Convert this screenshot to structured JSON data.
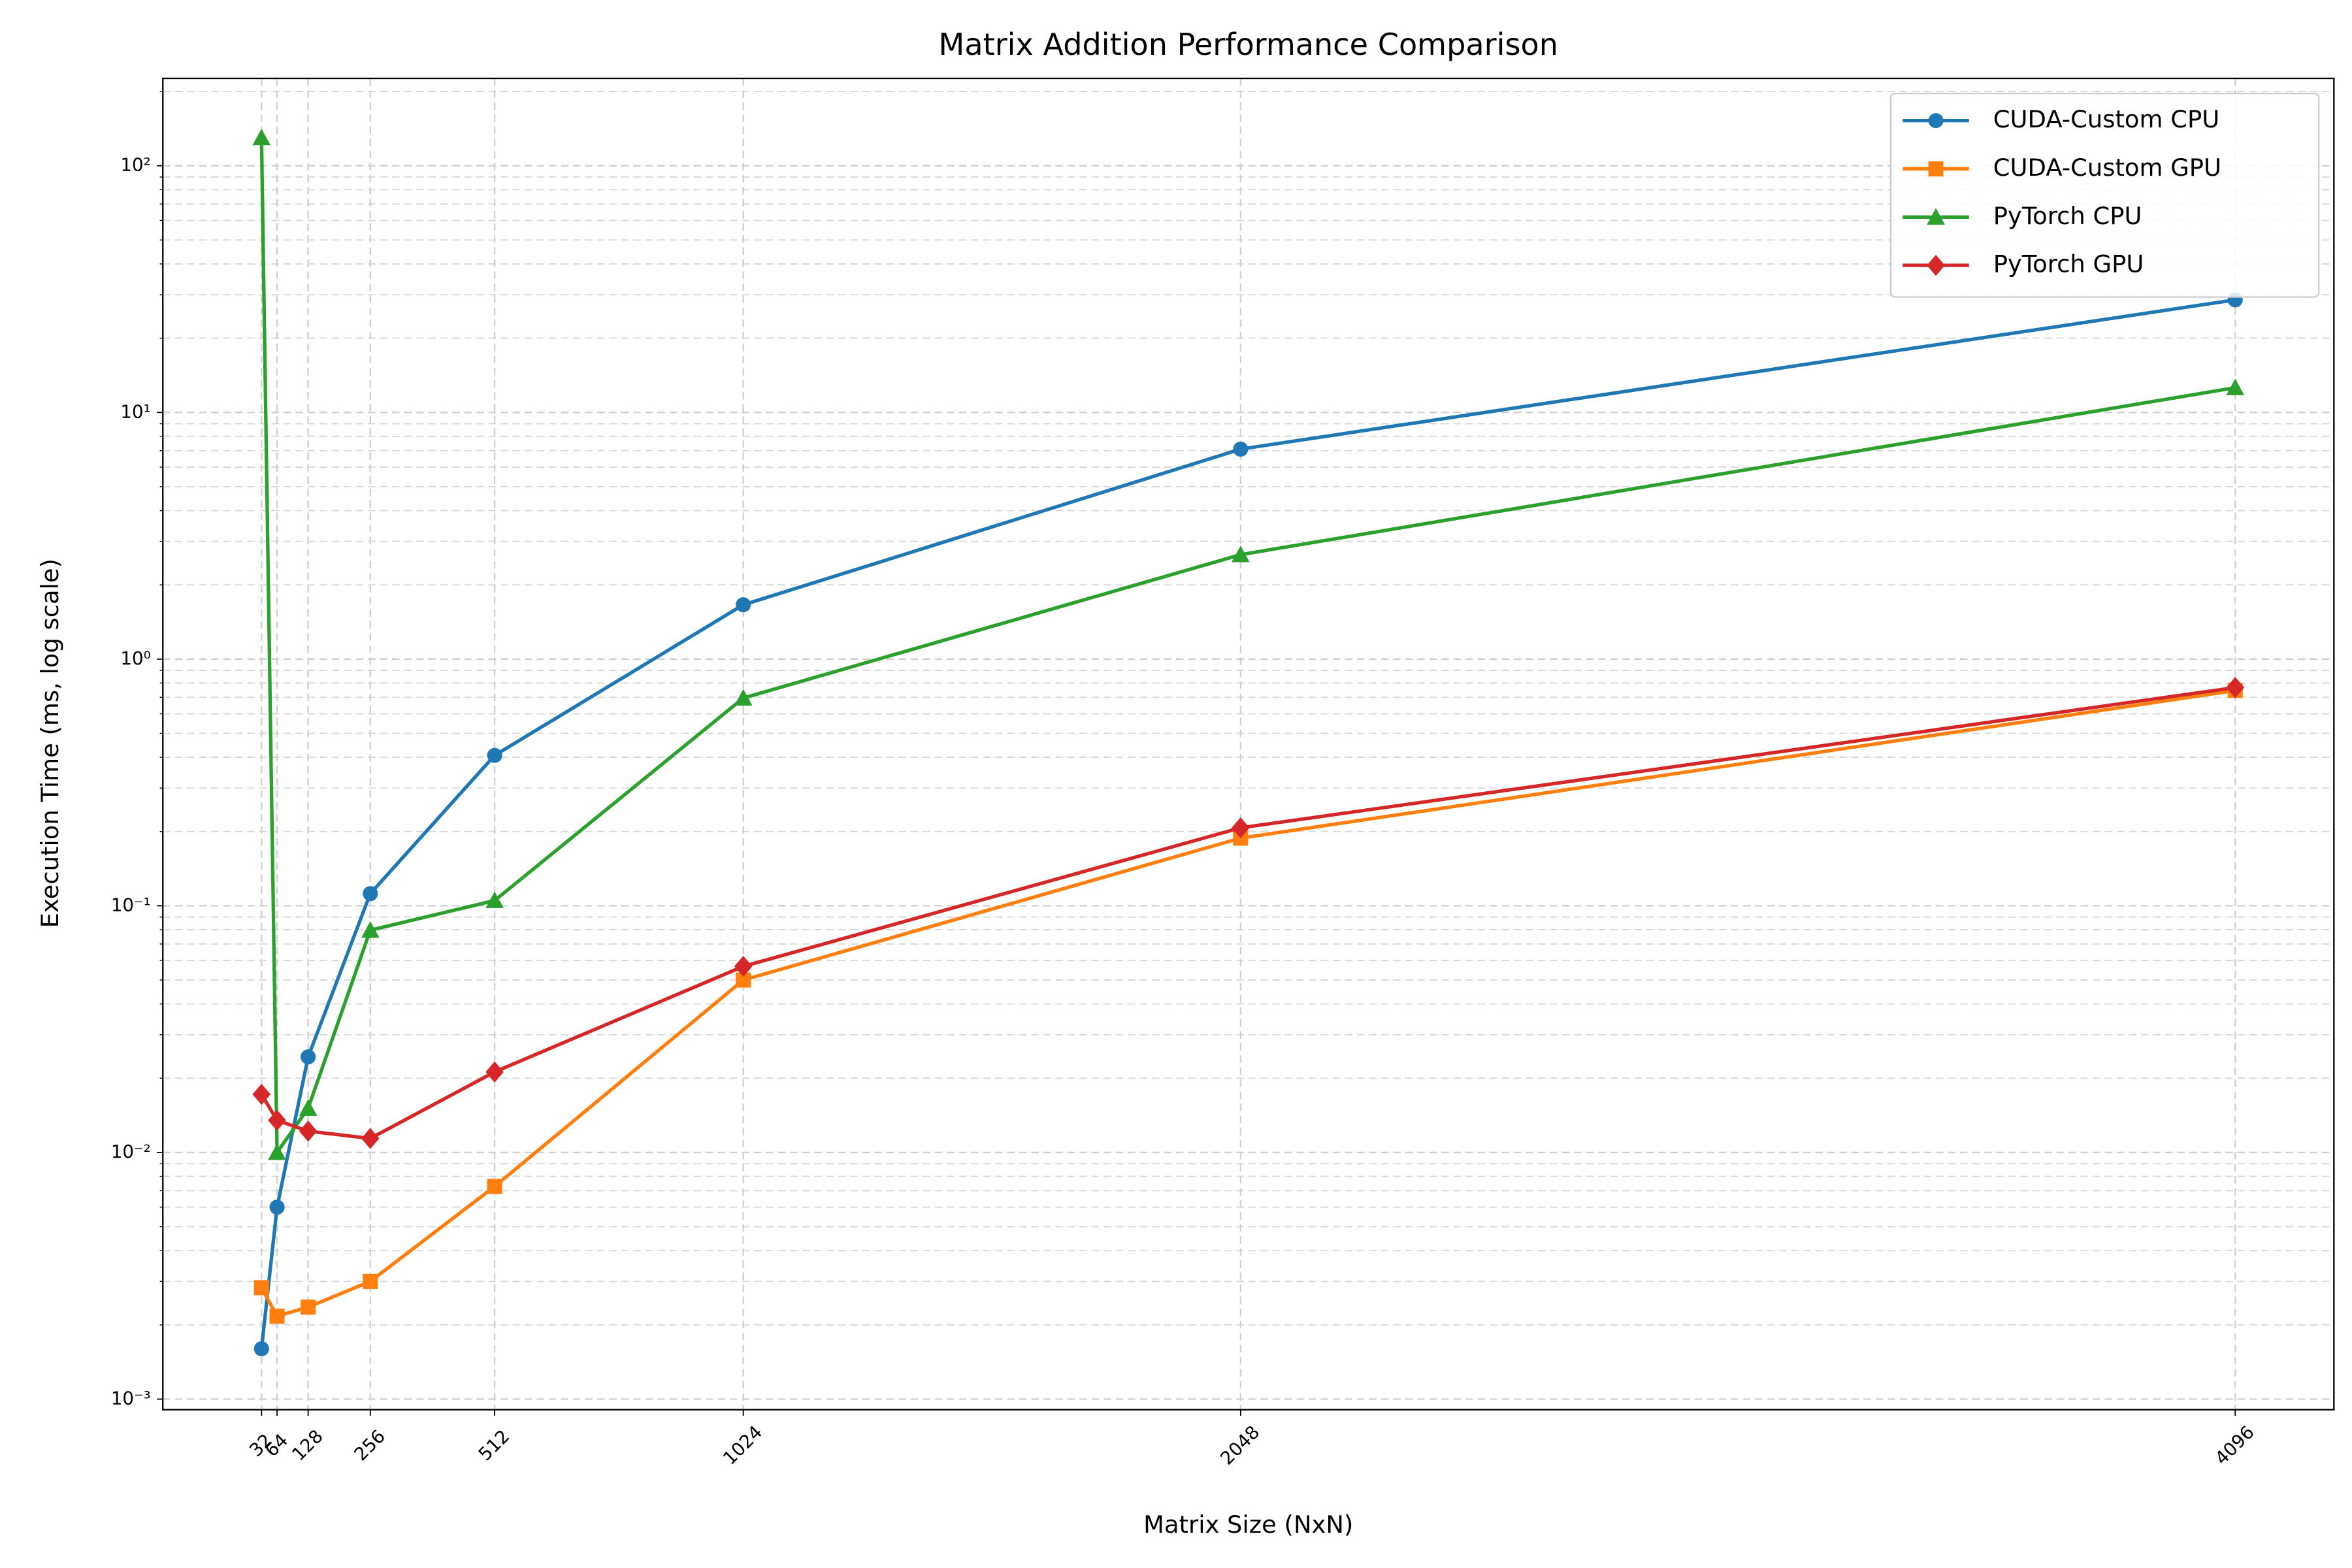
{
  "chart_data": {
    "type": "line",
    "title": "Matrix Addition Performance Comparison",
    "x_label": "Matrix Size (NxN)",
    "y_label": "Execution Time (ms, log scale)",
    "x": [
      32,
      64,
      128,
      256,
      512,
      1024,
      2048,
      4096
    ],
    "xlim": [
      -171.2,
      4299.2
    ],
    "xticks": [
      32,
      64,
      128,
      256,
      512,
      1024,
      2048,
      4096
    ],
    "ylim": [
      0.000906,
      226
    ],
    "yscale": "log",
    "yticks": [
      {
        "value": 0.001,
        "label": "10⁻³"
      },
      {
        "value": 0.01,
        "label": "10⁻²"
      },
      {
        "value": 0.1,
        "label": "10⁻¹"
      },
      {
        "value": 1,
        "label": "10⁰"
      },
      {
        "value": 10,
        "label": "10¹"
      },
      {
        "value": 100,
        "label": "10²"
      }
    ],
    "grid": true,
    "minor_grid": true,
    "legend": "upper right",
    "series": [
      {
        "name": "CUDA-Custom CPU",
        "color": "#1f77b4",
        "marker": "circle",
        "values": [
          0.0016,
          0.006,
          0.0244,
          0.112,
          0.407,
          1.66,
          7.1,
          28.6
        ]
      },
      {
        "name": "CUDA-Custom GPU",
        "color": "#ff7f0e",
        "marker": "square",
        "values": [
          0.00283,
          0.00217,
          0.00236,
          0.003,
          0.00728,
          0.05,
          0.188,
          0.746
        ]
      },
      {
        "name": "PyTorch CPU",
        "color": "#2ca02c",
        "marker": "triangle",
        "values": [
          130,
          0.01,
          0.0151,
          0.0796,
          0.105,
          0.695,
          2.65,
          12.6
        ]
      },
      {
        "name": "PyTorch GPU",
        "color": "#d62728",
        "marker": "diamond",
        "values": [
          0.0172,
          0.0135,
          0.0122,
          0.0114,
          0.0212,
          0.0568,
          0.207,
          0.767
        ]
      }
    ]
  }
}
